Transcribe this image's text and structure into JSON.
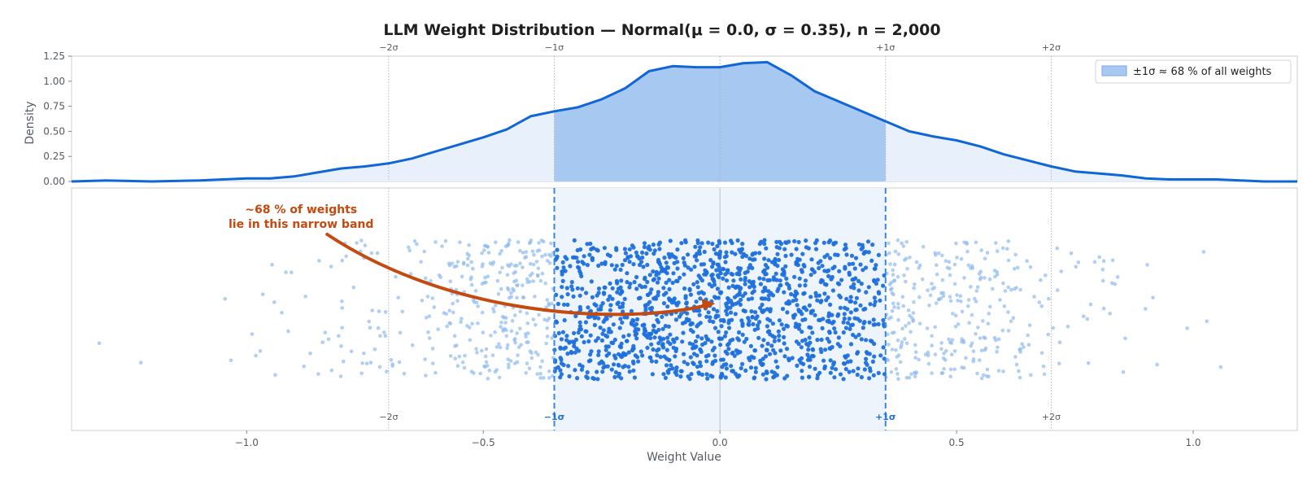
{
  "chart_data": {
    "type": "density + jittered scatter",
    "title": "LLM Weight Distribution  —  Normal(μ = 0.0, σ = 0.35),  n = 2,000",
    "mu": 0.0,
    "sigma": 0.35,
    "n": 2000,
    "xlabel": "Weight Value",
    "ylabel": "Density",
    "xlim": [
      -1.37,
      1.22
    ],
    "ylim": [
      0,
      1.25
    ],
    "x_ticks": [
      -1.0,
      -0.5,
      0.0,
      0.5,
      1.0
    ],
    "x_tick_labels": [
      "−1.0",
      "−0.5",
      "0.0",
      "0.5",
      "1.0"
    ],
    "y_ticks": [
      0,
      0.25,
      0.5,
      0.75,
      1.0,
      1.25
    ],
    "y_tick_labels": [
      "0.00",
      "0.25",
      "0.50",
      "0.75",
      "1.00",
      "1.25"
    ],
    "sigma_marks": [
      {
        "x": -0.7,
        "label": "−2σ"
      },
      {
        "x": -0.35,
        "label": "−1σ"
      },
      {
        "x": 0.35,
        "label": "+1σ"
      },
      {
        "x": 0.7,
        "label": "+2σ"
      }
    ],
    "kde": {
      "x": [
        -1.37,
        -1.3,
        -1.2,
        -1.1,
        -1.0,
        -0.95,
        -0.9,
        -0.85,
        -0.8,
        -0.75,
        -0.7,
        -0.65,
        -0.6,
        -0.55,
        -0.5,
        -0.45,
        -0.4,
        -0.35,
        -0.3,
        -0.25,
        -0.2,
        -0.15,
        -0.1,
        -0.05,
        0.0,
        0.05,
        0.1,
        0.15,
        0.2,
        0.25,
        0.3,
        0.35,
        0.4,
        0.45,
        0.5,
        0.55,
        0.6,
        0.65,
        0.7,
        0.75,
        0.8,
        0.85,
        0.9,
        0.95,
        1.0,
        1.05,
        1.1,
        1.15,
        1.22
      ],
      "y": [
        0.0,
        0.01,
        0.0,
        0.01,
        0.03,
        0.03,
        0.05,
        0.09,
        0.13,
        0.15,
        0.18,
        0.23,
        0.3,
        0.37,
        0.44,
        0.52,
        0.65,
        0.7,
        0.74,
        0.82,
        0.93,
        1.1,
        1.15,
        1.14,
        1.14,
        1.18,
        1.19,
        1.06,
        0.9,
        0.8,
        0.7,
        0.6,
        0.5,
        0.45,
        0.41,
        0.35,
        0.27,
        0.21,
        0.15,
        0.1,
        0.08,
        0.06,
        0.03,
        0.02,
        0.02,
        0.02,
        0.01,
        0.0,
        0.0
      ]
    },
    "legend": {
      "label": "±1σ  ≈ 68 % of all weights",
      "position": "top-right"
    },
    "annotation": {
      "lines": [
        "~68 % of weights",
        "lie in this narrow band"
      ],
      "arrow_to_x": -0.01
    }
  },
  "colors": {
    "line": "#0f66d6",
    "band_fill": "#a6c8f1",
    "tail_fill": "#e8f1fb",
    "inner_points": "#1f70dc",
    "outer_points": "#8fbaee",
    "annotation": "#c44a0f",
    "grid": "#c8ccd1"
  }
}
